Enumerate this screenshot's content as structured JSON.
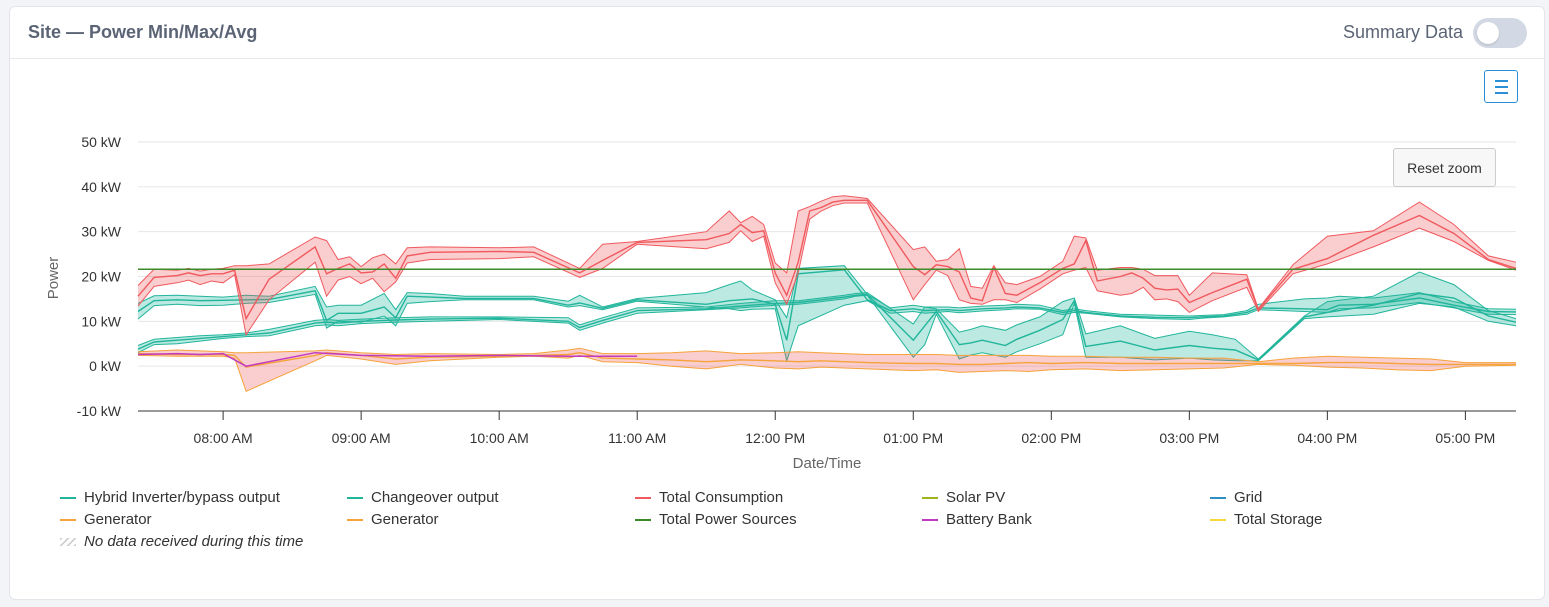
{
  "card": {
    "title": "Site — Power Min/Max/Avg",
    "summary_label": "Summary Data",
    "summary_on": false
  },
  "menu_icon": "hamburger-menu-icon",
  "reset_zoom": "Reset zoom",
  "chart_data": {
    "type": "area",
    "title": "",
    "xlabel": "Date/Time",
    "ylabel": "Power",
    "x_type": "time",
    "x_ticks": [
      "08:00 AM",
      "09:00 AM",
      "10:00 AM",
      "11:00 AM",
      "12:00 PM",
      "01:00 PM",
      "02:00 PM",
      "03:00 PM",
      "04:00 PM",
      "05:00 PM"
    ],
    "y_ticks": [
      "-10 kW",
      "0 kW",
      "10 kW",
      "20 kW",
      "30 kW",
      "40 kW",
      "50 kW"
    ],
    "ylim": [
      -10,
      50
    ],
    "xlim": [
      "07:23",
      "17:22"
    ],
    "grid": true,
    "legend_position": "bottom",
    "series": [
      {
        "name": "Hybrid Inverter/bypass output",
        "color": "#21b59b",
        "style": "range",
        "x": [
          "07:23",
          "07:30",
          "07:40",
          "07:50",
          "08:00",
          "08:10",
          "08:20",
          "08:40",
          "08:45",
          "08:50",
          "09:00",
          "09:10",
          "09:15",
          "09:20",
          "09:30",
          "09:45",
          "10:00",
          "10:15",
          "10:30",
          "10:35",
          "10:45",
          "11:00",
          "11:30",
          "11:40",
          "11:45",
          "11:50",
          "12:00",
          "12:05",
          "12:10",
          "12:30",
          "12:40",
          "12:50",
          "13:00",
          "13:05",
          "13:15",
          "13:20",
          "13:30",
          "13:40",
          "13:45",
          "13:55",
          "14:05",
          "14:10",
          "14:15",
          "14:30",
          "14:45",
          "15:00",
          "15:05",
          "15:15",
          "15:25",
          "15:30",
          "15:50",
          "16:00",
          "16:05",
          "16:20",
          "16:40",
          "16:55",
          "17:10",
          "17:22"
        ],
        "min": [
          10.5,
          13.5,
          13.8,
          13.5,
          13.6,
          14.0,
          14.2,
          16.0,
          8.5,
          10.0,
          9.8,
          11.2,
          9.0,
          14.0,
          14.4,
          14.8,
          14.8,
          14.8,
          13.2,
          13.5,
          12.6,
          14.5,
          13.2,
          12.8,
          12.4,
          12.7,
          12.8,
          1.2,
          9.0,
          13.6,
          14.6,
          11.8,
          12.2,
          11.8,
          12.2,
          11.9,
          12.3,
          12.6,
          12.8,
          12.7,
          11.5,
          12.0,
          11.8,
          11.0,
          10.6,
          10.4,
          10.7,
          11.0,
          11.6,
          12.6,
          12.2,
          12.0,
          12.8,
          13.0,
          14.2,
          13.0,
          11.6,
          11.5
        ],
        "avg": [
          12.2,
          14.6,
          14.8,
          14.6,
          14.7,
          14.8,
          14.9,
          16.8,
          10.2,
          11.8,
          11.8,
          13.2,
          10.8,
          15.6,
          15.4,
          15.1,
          15.1,
          15.1,
          13.6,
          14.1,
          12.9,
          14.8,
          13.8,
          14.6,
          14.8,
          15.0,
          13.8,
          5.8,
          20.6,
          21.5,
          14.8,
          12.4,
          12.8,
          12.4,
          12.6,
          12.4,
          12.8,
          13.0,
          13.2,
          13.0,
          12.0,
          12.4,
          12.0,
          11.2,
          10.9,
          10.8,
          11.0,
          11.2,
          12.0,
          13.0,
          12.8,
          12.6,
          13.6,
          13.8,
          15.2,
          13.6,
          12.2,
          12.1
        ],
        "max": [
          14.0,
          15.7,
          15.8,
          15.6,
          15.4,
          15.8,
          15.6,
          17.8,
          13.2,
          13.6,
          13.6,
          16.2,
          12.6,
          16.4,
          16.2,
          15.6,
          15.6,
          15.6,
          14.5,
          15.8,
          13.2,
          15.1,
          16.4,
          18.2,
          19.0,
          17.0,
          14.8,
          10.8,
          21.8,
          22.4,
          16.0,
          13.0,
          13.6,
          13.2,
          13.2,
          13.0,
          13.4,
          13.6,
          13.8,
          13.6,
          12.4,
          12.8,
          12.4,
          11.6,
          11.4,
          11.2,
          11.3,
          11.5,
          12.4,
          13.8,
          15.0,
          15.2,
          15.6,
          15.2,
          16.4,
          14.4,
          12.8,
          12.7
        ]
      },
      {
        "name": "Changeover output",
        "color": "#21b59b",
        "style": "range",
        "x": [
          "07:23",
          "07:30",
          "07:40",
          "07:50",
          "08:00",
          "08:10",
          "08:20",
          "08:40",
          "08:45",
          "08:50",
          "09:00",
          "09:15",
          "09:30",
          "09:45",
          "10:00",
          "10:30",
          "10:35",
          "10:45",
          "11:00",
          "11:30",
          "11:45",
          "12:00",
          "12:10",
          "12:20",
          "12:30",
          "12:35",
          "12:40",
          "13:00",
          "13:05",
          "13:10",
          "13:20",
          "13:25",
          "13:30",
          "13:40",
          "13:45",
          "13:55",
          "14:05",
          "14:10",
          "14:15",
          "14:30",
          "14:45",
          "15:00",
          "15:10",
          "15:20",
          "15:30",
          "15:50",
          "16:00",
          "16:20",
          "16:40",
          "16:55",
          "17:10",
          "17:22"
        ],
        "min": [
          3.0,
          4.8,
          5.0,
          5.6,
          6.2,
          6.6,
          6.8,
          9.0,
          9.2,
          9.0,
          9.5,
          9.8,
          10.0,
          10.2,
          10.4,
          9.6,
          8.0,
          9.6,
          11.8,
          12.6,
          13.0,
          13.6,
          13.8,
          14.4,
          15.0,
          15.6,
          15.8,
          2.0,
          4.8,
          11.6,
          1.6,
          2.5,
          3.0,
          2.0,
          3.2,
          5.0,
          7.0,
          14.0,
          2.0,
          2.0,
          1.4,
          1.8,
          1.4,
          1.2,
          1.2,
          10.6,
          11.0,
          11.6,
          14.0,
          13.2,
          10.0,
          9.0
        ],
        "avg": [
          3.8,
          5.4,
          5.8,
          6.2,
          6.6,
          7.0,
          7.4,
          9.6,
          9.8,
          9.6,
          10.0,
          10.3,
          10.5,
          10.6,
          10.7,
          10.0,
          8.6,
          10.2,
          12.4,
          12.8,
          13.4,
          14.0,
          14.2,
          14.8,
          15.4,
          15.8,
          16.0,
          5.8,
          9.0,
          12.2,
          4.8,
          5.2,
          5.8,
          4.6,
          6.0,
          8.0,
          10.4,
          14.6,
          4.4,
          5.6,
          3.6,
          4.6,
          4.0,
          3.6,
          1.4,
          11.0,
          12.0,
          13.6,
          16.2,
          15.2,
          11.2,
          9.8
        ],
        "max": [
          4.6,
          6.0,
          6.4,
          6.8,
          7.0,
          7.4,
          8.2,
          10.2,
          10.4,
          10.2,
          10.5,
          10.8,
          11.0,
          11.0,
          11.0,
          10.8,
          9.2,
          10.8,
          13.0,
          13.2,
          14.0,
          14.6,
          14.6,
          15.2,
          15.8,
          16.2,
          16.4,
          9.4,
          13.2,
          12.8,
          7.6,
          8.2,
          9.0,
          8.0,
          9.2,
          11.0,
          14.4,
          15.2,
          7.2,
          9.0,
          6.2,
          7.8,
          7.0,
          6.0,
          1.6,
          11.2,
          14.4,
          15.6,
          21.0,
          18.2,
          12.4,
          10.6
        ]
      },
      {
        "name": "Total Consumption",
        "color": "#f0595e",
        "style": "range",
        "x": [
          "07:23",
          "07:30",
          "07:40",
          "07:45",
          "07:50",
          "07:55",
          "08:00",
          "08:05",
          "08:10",
          "08:20",
          "08:40",
          "08:45",
          "08:50",
          "08:55",
          "09:00",
          "09:05",
          "09:10",
          "09:15",
          "09:20",
          "09:30",
          "10:00",
          "10:15",
          "10:35",
          "10:45",
          "11:00",
          "11:30",
          "11:40",
          "11:45",
          "11:50",
          "11:55",
          "12:00",
          "12:05",
          "12:10",
          "12:15",
          "12:20",
          "12:25",
          "12:30",
          "12:40",
          "13:00",
          "13:05",
          "13:10",
          "13:15",
          "13:20",
          "13:25",
          "13:30",
          "13:35",
          "13:40",
          "13:45",
          "13:55",
          "14:05",
          "14:10",
          "14:15",
          "14:20",
          "14:30",
          "14:35",
          "14:40",
          "14:45",
          "14:50",
          "14:55",
          "15:00",
          "15:10",
          "15:25",
          "15:30",
          "15:45",
          "16:00",
          "16:20",
          "16:40",
          "16:55",
          "17:10",
          "17:22"
        ],
        "min": [
          13.4,
          17.8,
          18.6,
          19.2,
          18.2,
          19.0,
          18.6,
          20.4,
          7.0,
          14.8,
          23.2,
          15.6,
          19.2,
          20.0,
          18.4,
          19.6,
          16.6,
          18.8,
          23.0,
          23.8,
          24.0,
          24.4,
          19.8,
          21.8,
          27.2,
          26.2,
          27.6,
          30.2,
          27.8,
          29.0,
          18.6,
          13.8,
          20.8,
          32.8,
          34.6,
          35.8,
          36.4,
          36.4,
          14.8,
          18.2,
          21.4,
          20.2,
          14.8,
          14.0,
          13.8,
          14.8,
          14.8,
          14.2,
          17.2,
          20.6,
          21.4,
          22.0,
          16.8,
          15.8,
          16.2,
          17.6,
          14.8,
          15.0,
          14.4,
          12.0,
          14.6,
          17.6,
          12.2,
          20.6,
          22.8,
          26.6,
          30.8,
          27.8,
          23.6,
          21.4
        ],
        "avg": [
          15.6,
          19.8,
          20.2,
          20.8,
          20.2,
          20.6,
          20.6,
          21.4,
          10.6,
          19.4,
          26.6,
          20.6,
          21.8,
          22.8,
          20.8,
          21.0,
          22.8,
          19.6,
          24.6,
          25.4,
          25.6,
          25.4,
          20.8,
          23.6,
          27.6,
          28.2,
          29.6,
          31.6,
          29.8,
          30.2,
          20.8,
          15.8,
          23.2,
          34.6,
          35.4,
          36.6,
          37.0,
          37.0,
          22.2,
          20.4,
          22.6,
          22.2,
          21.0,
          15.2,
          14.6,
          22.0,
          16.2,
          15.8,
          18.6,
          21.8,
          22.8,
          28.0,
          19.0,
          20.0,
          20.8,
          19.6,
          17.4,
          17.0,
          17.2,
          14.2,
          16.4,
          19.4,
          12.6,
          21.6,
          24.0,
          29.2,
          33.6,
          29.6,
          23.8,
          21.8
        ],
        "max": [
          18.0,
          21.6,
          21.4,
          21.8,
          21.2,
          21.6,
          21.8,
          22.4,
          22.4,
          22.8,
          28.8,
          28.0,
          23.8,
          24.4,
          22.2,
          24.2,
          25.0,
          22.8,
          26.4,
          26.6,
          26.4,
          26.6,
          21.8,
          27.2,
          27.8,
          30.0,
          34.6,
          32.0,
          33.4,
          31.6,
          23.0,
          20.8,
          34.6,
          35.6,
          36.8,
          37.8,
          38.0,
          37.4,
          26.0,
          26.6,
          23.4,
          23.8,
          26.2,
          17.8,
          17.4,
          22.4,
          18.6,
          18.2,
          20.0,
          23.4,
          29.0,
          28.6,
          21.4,
          22.0,
          22.0,
          21.6,
          20.2,
          20.2,
          20.2,
          15.8,
          20.8,
          20.4,
          12.8,
          22.6,
          29.0,
          30.2,
          36.6,
          31.6,
          24.6,
          23.2
        ]
      },
      {
        "name": "Solar PV",
        "color": "#9fb31c",
        "style": "line",
        "x": [],
        "values": []
      },
      {
        "name": "Grid",
        "color": "#2f8fc3",
        "style": "line",
        "x": [],
        "values": []
      },
      {
        "name": "Generator",
        "color": "#f5a33b",
        "style": "range",
        "x": [
          "07:23",
          "07:40",
          "08:00",
          "08:05",
          "08:10",
          "08:40",
          "08:45",
          "09:00",
          "09:15",
          "09:30",
          "10:00",
          "10:15",
          "10:30",
          "10:35",
          "10:45",
          "11:00",
          "11:15",
          "11:30",
          "11:45",
          "12:00",
          "12:10",
          "12:20",
          "12:30",
          "12:40",
          "13:00",
          "13:10",
          "13:20",
          "13:30",
          "13:40",
          "13:50",
          "14:00",
          "14:15",
          "14:30",
          "14:45",
          "15:00",
          "15:15",
          "15:30",
          "15:45",
          "16:00",
          "16:15",
          "16:30",
          "16:45",
          "17:00",
          "17:22"
        ],
        "min": [
          2.4,
          2.2,
          2.2,
          1.8,
          -5.6,
          1.2,
          2.4,
          1.6,
          0.4,
          1.2,
          2.0,
          2.2,
          1.8,
          2.4,
          1.0,
          0.8,
          0.0,
          -0.6,
          0.4,
          -0.4,
          -0.6,
          -0.2,
          -0.4,
          -0.6,
          -1.0,
          -0.8,
          -1.4,
          -1.2,
          -1.0,
          -1.2,
          -0.8,
          -0.6,
          -1.0,
          -0.8,
          -0.6,
          -0.4,
          0.4,
          0.2,
          -0.2,
          -0.4,
          -0.8,
          -1.0,
          0.0,
          0.2
        ],
        "avg": [
          2.8,
          2.6,
          2.6,
          2.4,
          -0.2,
          2.4,
          3.0,
          2.4,
          1.6,
          2.0,
          2.2,
          2.4,
          2.6,
          3.0,
          1.8,
          1.6,
          1.4,
          1.0,
          1.4,
          1.2,
          1.0,
          1.2,
          1.0,
          0.8,
          0.6,
          0.6,
          0.4,
          0.4,
          0.6,
          0.8,
          0.6,
          0.8,
          0.6,
          0.6,
          0.6,
          0.6,
          0.6,
          0.6,
          0.8,
          0.8,
          0.6,
          0.4,
          0.4,
          0.4
        ],
        "max": [
          3.2,
          3.6,
          3.2,
          3.0,
          3.0,
          3.4,
          3.6,
          3.0,
          2.6,
          2.8,
          2.6,
          2.8,
          3.6,
          4.0,
          2.8,
          2.8,
          3.0,
          3.4,
          2.8,
          3.0,
          3.2,
          3.0,
          2.8,
          2.6,
          2.6,
          2.6,
          2.4,
          2.4,
          2.4,
          2.4,
          2.2,
          2.2,
          2.0,
          2.0,
          1.8,
          1.8,
          1.0,
          1.8,
          2.2,
          2.0,
          1.8,
          1.6,
          0.8,
          0.8
        ]
      },
      {
        "name": "Generator",
        "color": "#f5a33b",
        "style": "line",
        "x": [],
        "values": []
      },
      {
        "name": "Total Power Sources",
        "color": "#3d8a2a",
        "style": "line",
        "x": [
          "07:23",
          "17:22"
        ],
        "values": [
          21.6,
          21.6
        ]
      },
      {
        "name": "Battery Bank",
        "color": "#c23ac0",
        "style": "line",
        "x": [
          "07:23",
          "07:40",
          "07:50",
          "08:00",
          "08:10",
          "08:40",
          "09:00",
          "09:30",
          "10:00",
          "10:30",
          "11:00"
        ],
        "values": [
          2.6,
          2.8,
          2.6,
          2.8,
          0.0,
          3.0,
          2.4,
          2.2,
          2.4,
          2.2,
          2.2
        ]
      },
      {
        "name": "Total Storage",
        "color": "#f5d93b",
        "style": "line",
        "x": [],
        "values": []
      }
    ]
  },
  "legend": {
    "nodata_label": "No data received during this time"
  }
}
